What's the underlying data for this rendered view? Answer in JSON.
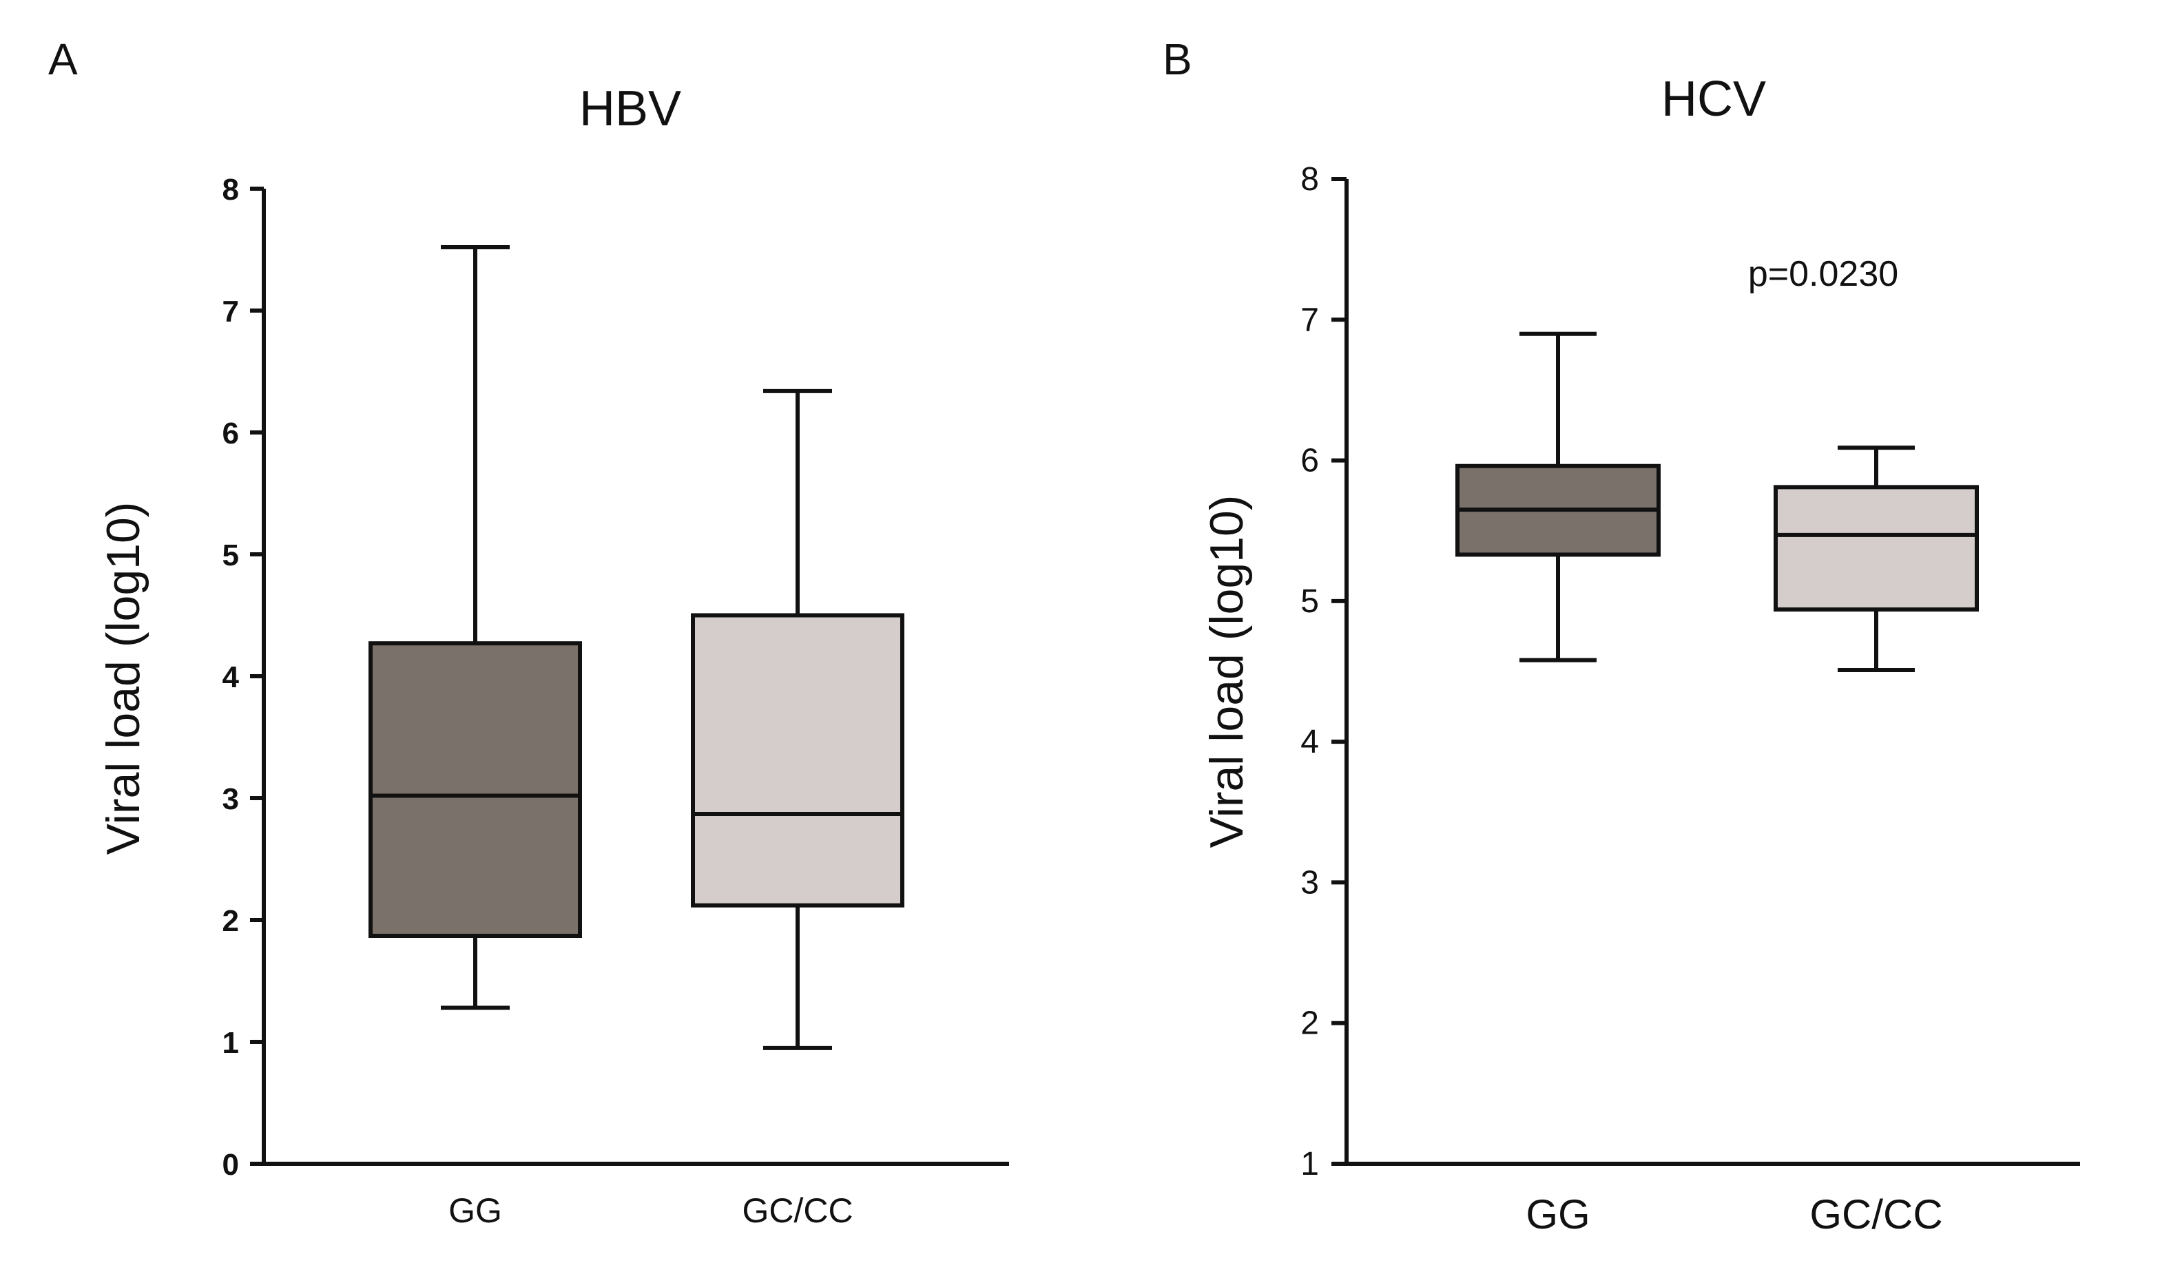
{
  "chart_data": [
    {
      "panel": "A",
      "type": "box",
      "title": "HBV",
      "ylabel": "Viral load (log10)",
      "xlabel": "",
      "ylim": [
        0,
        8
      ],
      "yticks": [
        0,
        1,
        2,
        3,
        4,
        5,
        6,
        7,
        8
      ],
      "categories": [
        "GG",
        "GC/CC"
      ],
      "series": [
        {
          "name": "GG",
          "min": 1.28,
          "q1": 1.87,
          "median": 3.02,
          "q3": 4.27,
          "max": 7.52,
          "color": "#7a716a"
        },
        {
          "name": "GC/CC",
          "min": 0.95,
          "q1": 2.12,
          "median": 2.87,
          "q3": 4.5,
          "max": 6.34,
          "color": "#d4cdcc"
        }
      ],
      "annotation": ""
    },
    {
      "panel": "B",
      "type": "box",
      "title": "HCV",
      "ylabel": "Viral load (log10)",
      "xlabel": "",
      "ylim": [
        1,
        8
      ],
      "yticks": [
        1,
        2,
        3,
        4,
        5,
        6,
        7,
        8
      ],
      "categories": [
        "GG",
        "GC/CC"
      ],
      "series": [
        {
          "name": "GG",
          "min": 4.58,
          "q1": 5.33,
          "median": 5.65,
          "q3": 5.96,
          "max": 6.9,
          "color": "#7a716a"
        },
        {
          "name": "GC/CC",
          "min": 4.51,
          "q1": 4.94,
          "median": 5.47,
          "q3": 5.81,
          "max": 6.09,
          "color": "#d4cdcc"
        }
      ],
      "annotation": "p=0.0230"
    }
  ]
}
